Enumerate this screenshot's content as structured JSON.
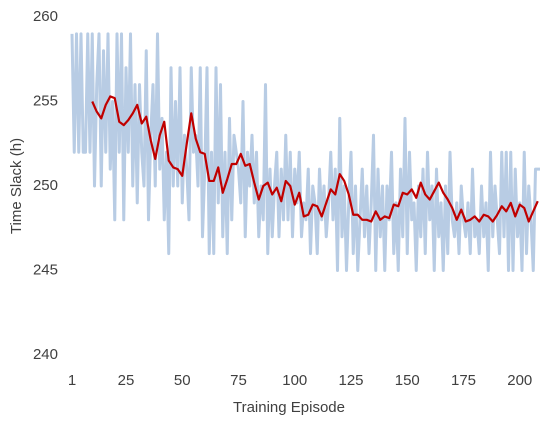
{
  "chart_data": {
    "type": "line",
    "xlabel": "Training Episode",
    "ylabel": "Time Slack (h)",
    "xlim": [
      1,
      209
    ],
    "xticks": [
      1,
      25,
      50,
      75,
      100,
      125,
      150,
      175,
      200
    ],
    "ylim": [
      240,
      260
    ],
    "yticks": [
      240,
      245,
      250,
      255,
      260
    ],
    "grid": false,
    "x": [
      1,
      2,
      3,
      4,
      5,
      6,
      7,
      8,
      9,
      10,
      11,
      12,
      13,
      14,
      15,
      16,
      17,
      18,
      19,
      20,
      21,
      22,
      23,
      24,
      25,
      26,
      27,
      28,
      29,
      30,
      31,
      32,
      33,
      34,
      35,
      36,
      37,
      38,
      39,
      40,
      41,
      42,
      43,
      44,
      45,
      46,
      47,
      48,
      49,
      50,
      51,
      52,
      53,
      54,
      55,
      56,
      57,
      58,
      59,
      60,
      61,
      62,
      63,
      64,
      65,
      66,
      67,
      68,
      69,
      70,
      71,
      72,
      73,
      74,
      75,
      76,
      77,
      78,
      79,
      80,
      81,
      82,
      83,
      84,
      85,
      86,
      87,
      88,
      89,
      90,
      91,
      92,
      93,
      94,
      95,
      96,
      97,
      98,
      99,
      100,
      101,
      102,
      103,
      104,
      105,
      106,
      107,
      108,
      109,
      110,
      111,
      112,
      113,
      114,
      115,
      116,
      117,
      118,
      119,
      120,
      121,
      122,
      123,
      124,
      125,
      126,
      127,
      128,
      129,
      130,
      131,
      132,
      133,
      134,
      135,
      136,
      137,
      138,
      139,
      140,
      141,
      142,
      143,
      144,
      145,
      146,
      147,
      148,
      149,
      150,
      151,
      152,
      153,
      154,
      155,
      156,
      157,
      158,
      159,
      160,
      161,
      162,
      163,
      164,
      165,
      166,
      167,
      168,
      169,
      170,
      171,
      172,
      173,
      174,
      175,
      176,
      177,
      178,
      179,
      180,
      181,
      182,
      183,
      184,
      185,
      186,
      187,
      188,
      189,
      190,
      191,
      192,
      193,
      194,
      195,
      196,
      197,
      198,
      199,
      200,
      201,
      202,
      203,
      204,
      205,
      206,
      207,
      208,
      209
    ],
    "series": [
      {
        "color": "#b8cce4",
        "width": 3,
        "values": [
          259,
          252,
          259,
          252,
          259,
          252,
          252,
          259,
          252,
          259,
          250,
          256,
          259,
          250,
          258,
          252,
          259,
          251,
          255,
          248,
          259,
          252,
          259,
          248,
          257,
          252,
          259,
          250,
          256,
          249,
          256,
          252,
          250,
          258,
          248,
          253,
          256,
          250,
          259,
          251,
          254,
          248,
          252,
          246,
          257,
          250,
          255,
          250,
          257,
          249,
          253,
          251,
          248,
          257,
          252,
          253,
          250,
          257,
          247,
          251,
          257,
          246,
          252,
          246,
          257,
          249,
          256,
          247,
          252,
          246,
          254,
          248,
          253,
          252,
          251,
          249,
          255,
          247,
          252,
          250,
          253,
          249,
          252,
          247,
          250,
          248,
          256,
          246,
          251,
          247,
          250,
          252,
          247,
          251,
          248,
          253,
          248,
          252,
          247,
          251,
          249,
          252,
          247,
          249,
          248,
          251,
          246,
          250,
          249,
          246,
          251,
          248,
          250,
          247,
          249,
          252,
          248,
          251,
          245,
          254,
          247,
          250,
          245,
          249,
          252,
          246,
          250,
          245,
          248,
          251,
          247,
          250,
          246,
          249,
          253,
          245,
          251,
          247,
          250,
          245,
          250,
          248,
          252,
          246,
          249,
          245,
          251,
          247,
          254,
          246,
          252,
          248,
          249,
          245,
          250,
          247,
          251,
          246,
          252,
          248,
          250,
          245,
          251,
          247,
          249,
          245,
          250,
          246,
          252,
          248,
          247,
          249,
          246,
          250,
          248,
          247,
          249,
          246,
          251,
          247,
          248,
          246,
          250,
          247,
          249,
          245,
          252,
          247,
          250,
          248,
          246,
          252,
          247,
          252,
          245,
          252,
          245,
          251,
          247,
          249,
          245,
          252,
          246,
          250,
          248,
          245,
          251,
          251,
          251
        ]
      },
      {
        "color": "#c00000",
        "width": 2.2,
        "x": [
          10,
          12,
          14,
          16,
          18,
          20,
          22,
          24,
          26,
          28,
          30,
          32,
          34,
          36,
          38,
          40,
          42,
          44,
          46,
          48,
          50,
          52,
          54,
          56,
          58,
          60,
          62,
          64,
          66,
          68,
          70,
          72,
          74,
          76,
          78,
          80,
          82,
          84,
          86,
          88,
          90,
          92,
          94,
          96,
          98,
          100,
          102,
          104,
          106,
          108,
          110,
          112,
          114,
          116,
          118,
          120,
          122,
          124,
          126,
          128,
          130,
          132,
          134,
          136,
          138,
          140,
          142,
          144,
          146,
          148,
          150,
          152,
          154,
          156,
          158,
          160,
          162,
          164,
          166,
          168,
          170,
          172,
          174,
          176,
          178,
          180,
          182,
          184,
          186,
          188,
          190,
          192,
          194,
          196,
          198,
          200,
          202,
          204,
          206,
          208
        ],
        "values": [
          255,
          254.4,
          254,
          254.8,
          255.3,
          255.2,
          253.8,
          253.6,
          253.9,
          254.3,
          254.8,
          253.7,
          254.1,
          252.7,
          251.6,
          253,
          253.8,
          251.5,
          251.1,
          251,
          250.6,
          252.5,
          254.3,
          252.8,
          252,
          251.9,
          250.3,
          250.3,
          251.1,
          249.6,
          250.4,
          251.3,
          251.3,
          251.9,
          251.2,
          251.3,
          250.2,
          249.2,
          250,
          250.2,
          249.5,
          249.9,
          249.1,
          250.3,
          250,
          248.9,
          249.6,
          248.2,
          248.3,
          248.9,
          248.8,
          248.2,
          249,
          249.8,
          249.5,
          250.7,
          250.3,
          249.5,
          248.3,
          248.3,
          248,
          248,
          247.9,
          248.5,
          248,
          248.2,
          248.1,
          248.9,
          248.8,
          249.6,
          249.5,
          249.8,
          249.3,
          250.2,
          249.5,
          249.2,
          249.7,
          250.2,
          249.6,
          249.2,
          248.7,
          248,
          248.6,
          247.9,
          248,
          248.2,
          247.9,
          248.3,
          248.2,
          247.9,
          248.3,
          248.8,
          248.5,
          249,
          248.2,
          248.9,
          248.7,
          247.9,
          248.5,
          249.1
        ]
      }
    ]
  }
}
